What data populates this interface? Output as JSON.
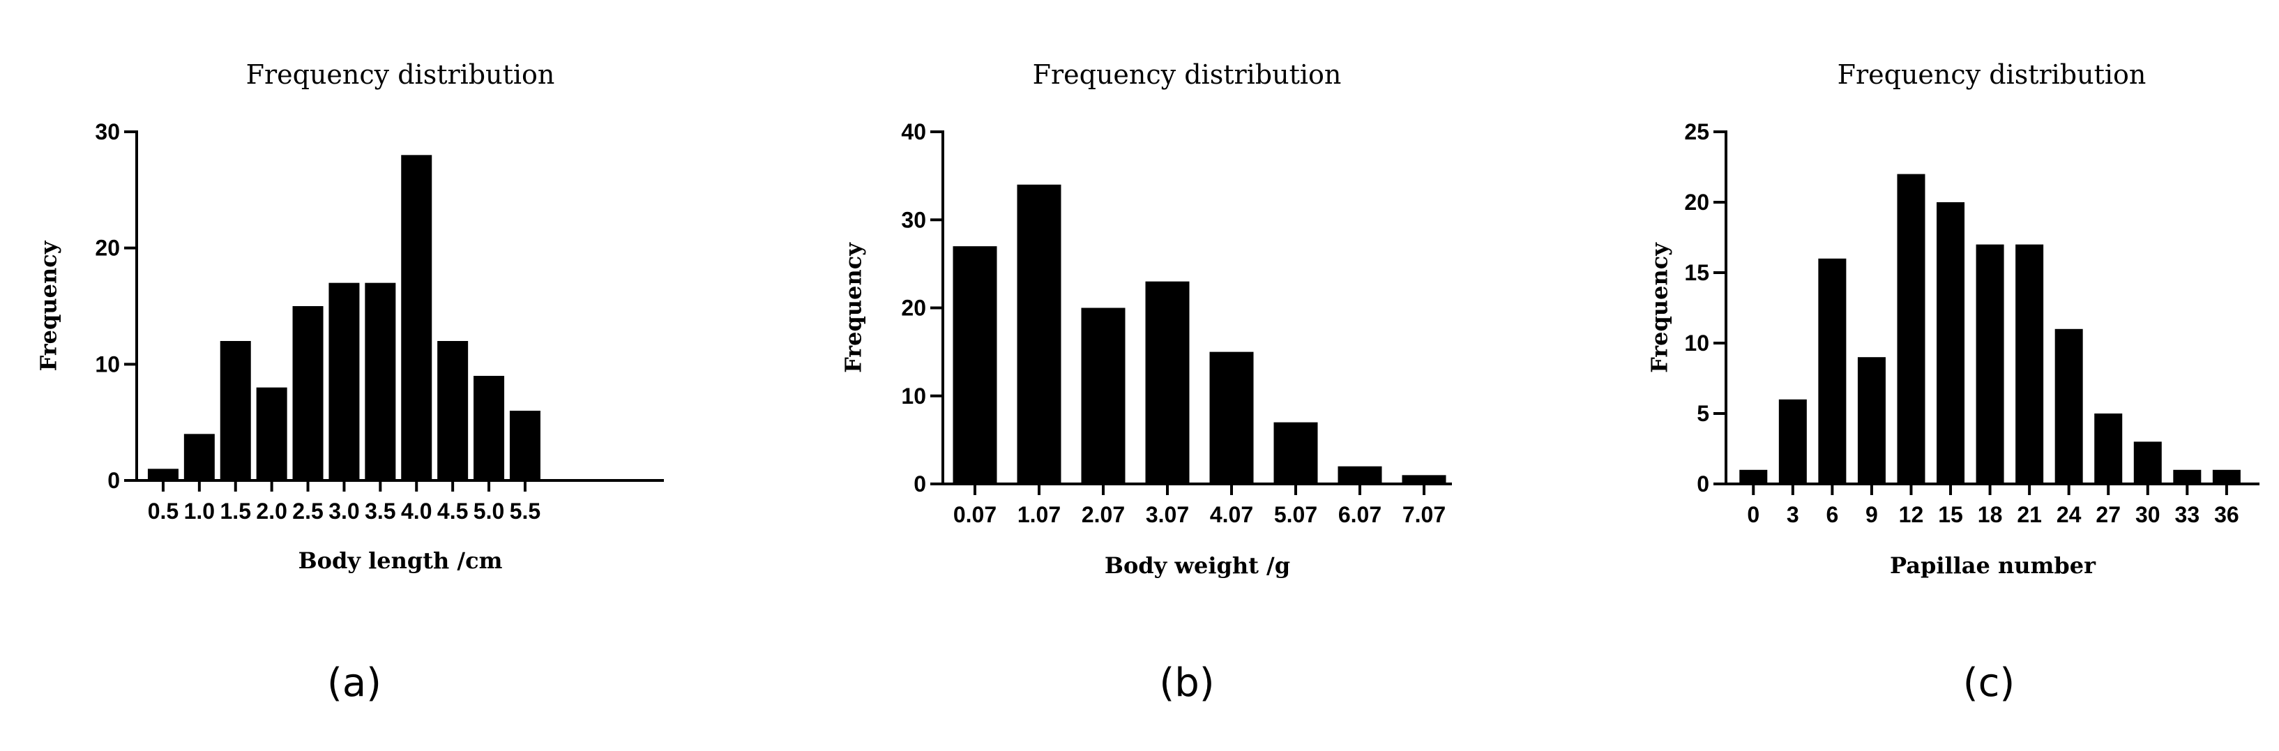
{
  "chart_data": [
    {
      "type": "bar",
      "title": "Frequency distribution",
      "xlabel": "Body length /cm",
      "ylabel": "Frequency",
      "panel_label": "(a)",
      "categories": [
        "0.5",
        "1.0",
        "1.5",
        "2.0",
        "2.5",
        "3.0",
        "3.5",
        "4.0",
        "4.5",
        "5.0",
        "5.5"
      ],
      "values": [
        1,
        4,
        12,
        8,
        15,
        17,
        17,
        28,
        12,
        9,
        6
      ],
      "ylim": [
        0,
        30
      ],
      "yticks": [
        0,
        10,
        20,
        30
      ],
      "grid": false
    },
    {
      "type": "bar",
      "title": "Frequency distribution",
      "xlabel": "Body weight /g",
      "ylabel": "Frequency",
      "panel_label": "(b)",
      "categories": [
        "0.07",
        "1.07",
        "2.07",
        "3.07",
        "4.07",
        "5.07",
        "6.07",
        "7.07"
      ],
      "values": [
        27,
        34,
        20,
        23,
        15,
        7,
        2,
        1
      ],
      "ylim": [
        0,
        40
      ],
      "yticks": [
        0,
        10,
        20,
        30,
        40
      ],
      "grid": false
    },
    {
      "type": "bar",
      "title": "Frequency distribution",
      "xlabel": "Papillae number",
      "ylabel": "Frequency",
      "panel_label": "(c)",
      "categories": [
        "0",
        "3",
        "6",
        "9",
        "12",
        "15",
        "18",
        "21",
        "24",
        "27",
        "30",
        "33",
        "36"
      ],
      "values": [
        1,
        6,
        16,
        9,
        22,
        20,
        17,
        17,
        11,
        5,
        3,
        1,
        1
      ],
      "ylim": [
        0,
        25
      ],
      "yticks": [
        0,
        5,
        10,
        15,
        20,
        25
      ],
      "grid": false
    }
  ]
}
